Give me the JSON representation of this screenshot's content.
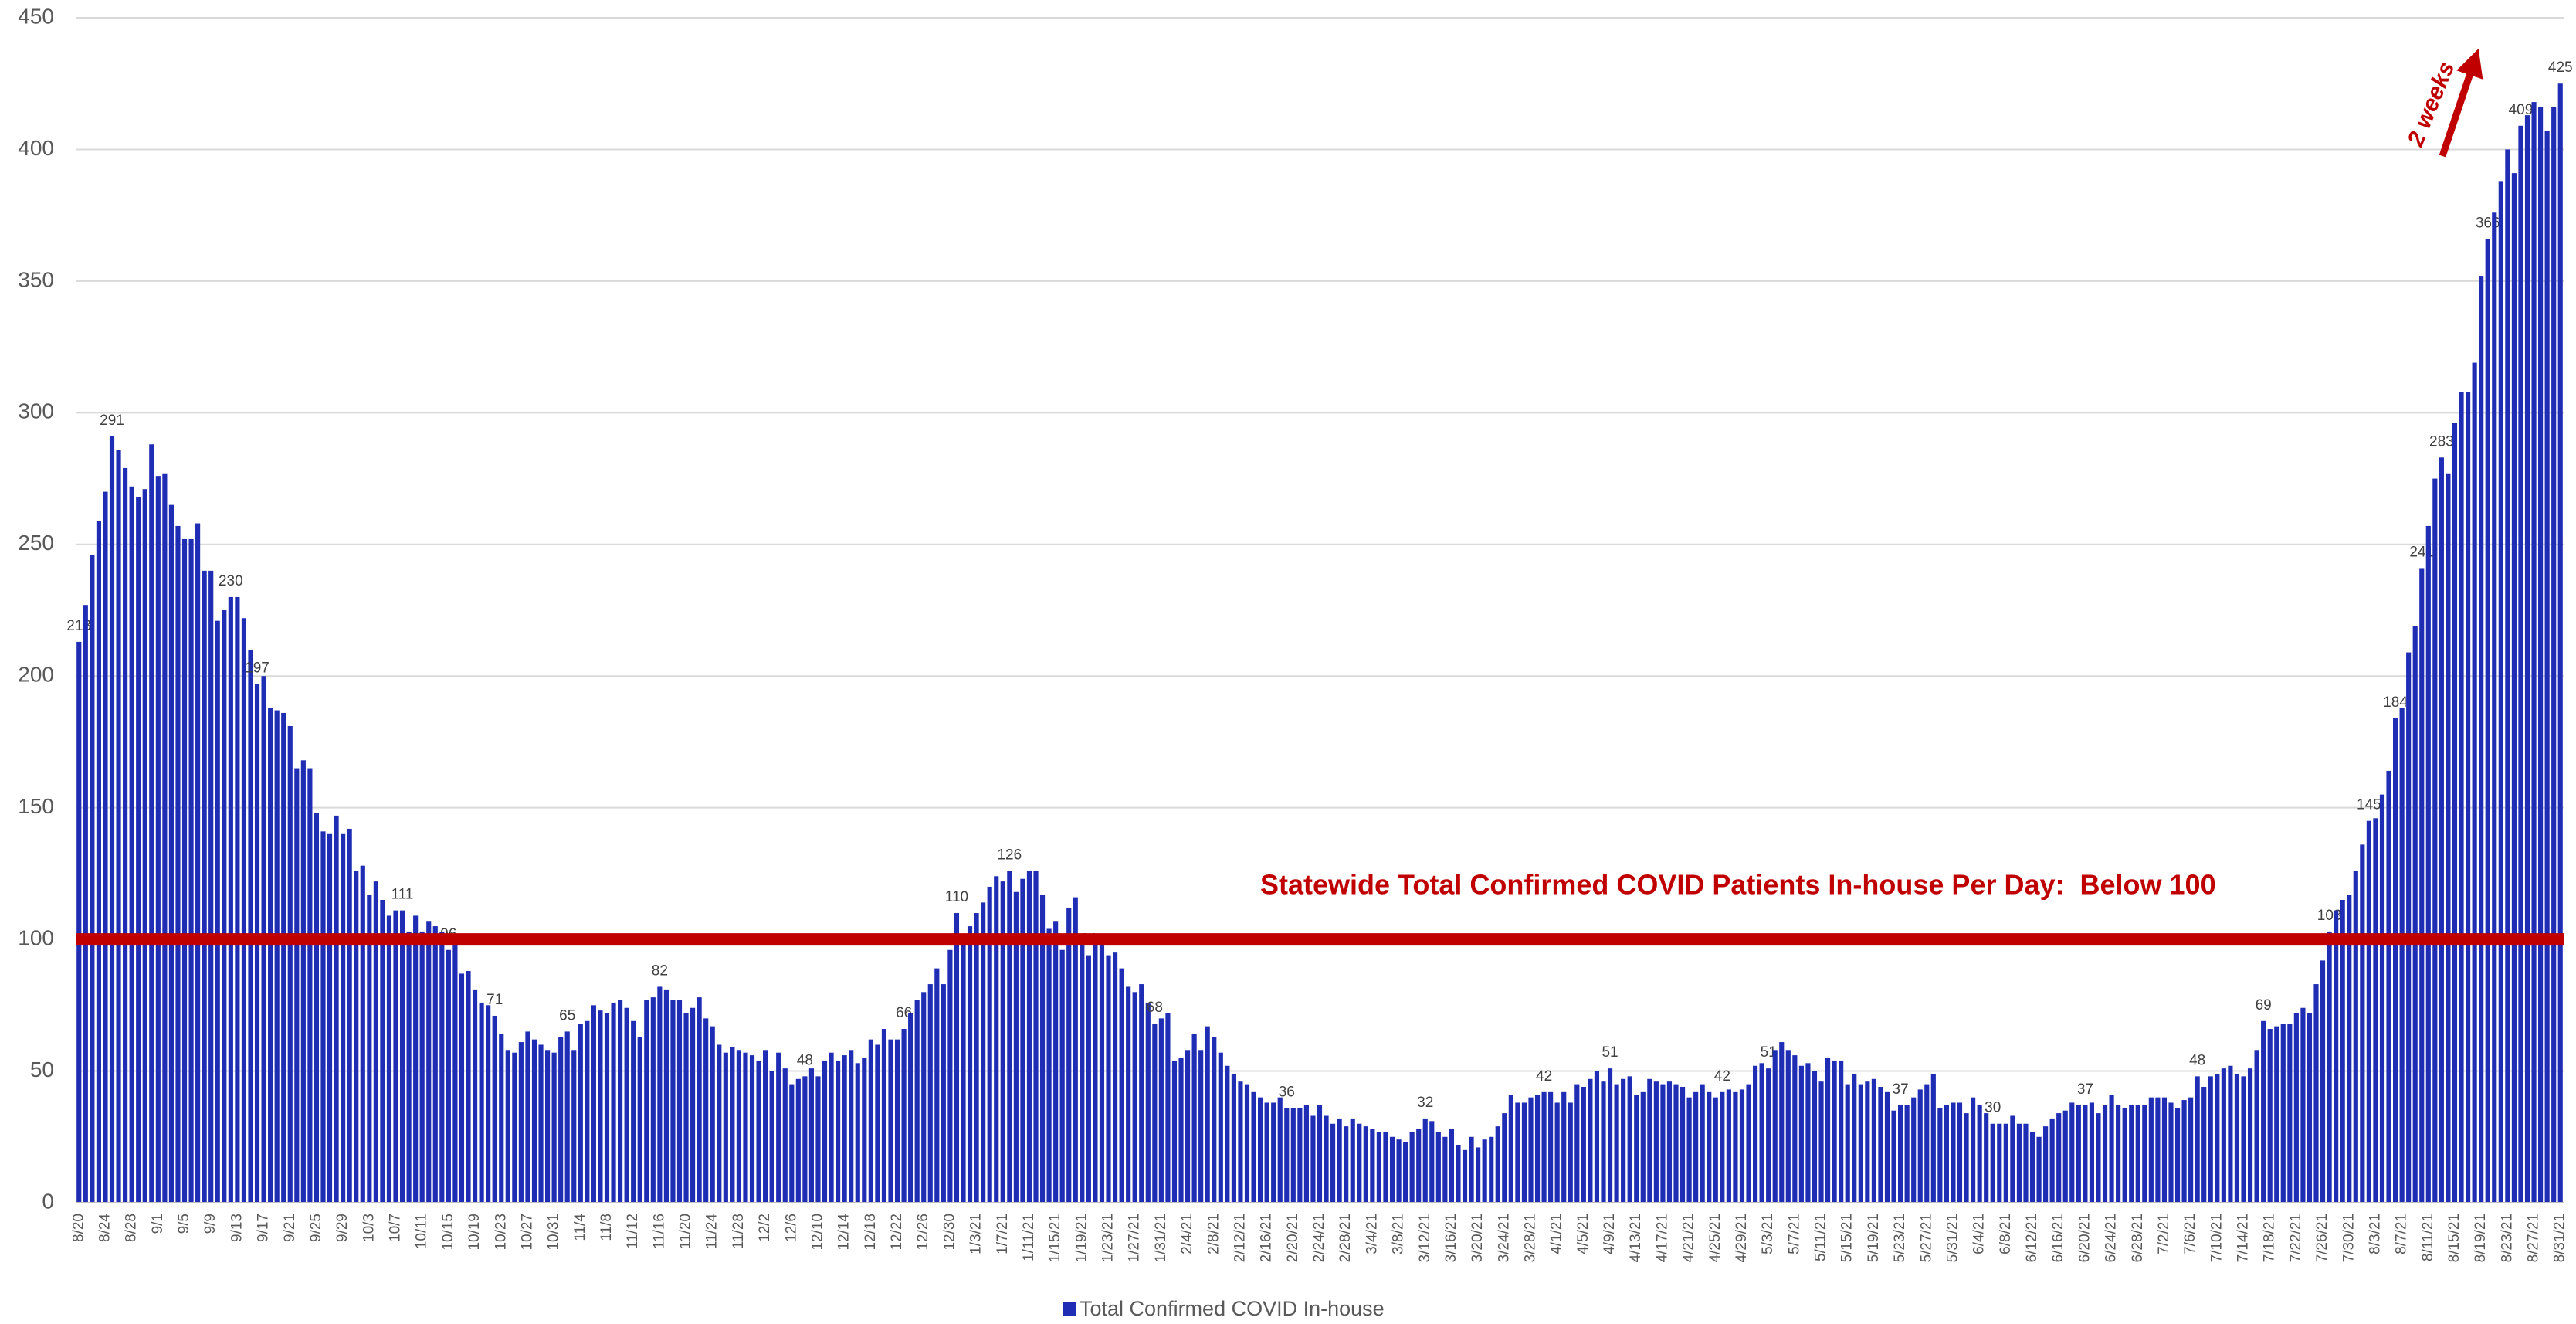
{
  "chart_data": {
    "type": "bar",
    "ylim": [
      0,
      450
    ],
    "yticks": [
      0,
      50,
      100,
      150,
      200,
      250,
      300,
      350,
      400,
      450
    ],
    "grid": true,
    "legend": "bottom",
    "reference_line": {
      "value": 100,
      "label": "Statewide Total Confirmed COVID Patients In-house Per Day:  Below 100",
      "color": "#c00000"
    },
    "annotation": "2 weeks",
    "categories": [
      "8/20",
      null,
      null,
      null,
      "8/24",
      null,
      null,
      null,
      "8/28",
      null,
      null,
      null,
      "9/1",
      null,
      null,
      null,
      "9/5",
      null,
      null,
      null,
      "9/9",
      null,
      null,
      null,
      "9/13",
      null,
      null,
      null,
      "9/17",
      null,
      null,
      null,
      "9/21",
      null,
      null,
      null,
      "9/25",
      null,
      null,
      null,
      "9/29",
      null,
      null,
      null,
      "10/3",
      null,
      null,
      null,
      "10/7",
      null,
      null,
      null,
      "10/11",
      null,
      null,
      null,
      "10/15",
      null,
      null,
      null,
      "10/19",
      null,
      null,
      null,
      "10/23",
      null,
      null,
      null,
      "10/27",
      null,
      null,
      null,
      "10/31",
      null,
      null,
      null,
      "11/4",
      null,
      null,
      null,
      "11/8",
      null,
      null,
      null,
      "11/12",
      null,
      null,
      null,
      "11/16",
      null,
      null,
      null,
      "11/20",
      null,
      null,
      null,
      "11/24",
      null,
      null,
      null,
      "11/28",
      null,
      null,
      null,
      "12/2",
      null,
      null,
      null,
      "12/6",
      null,
      null,
      null,
      "12/10",
      null,
      null,
      null,
      "12/14",
      null,
      null,
      null,
      "12/18",
      null,
      null,
      null,
      "12/22",
      null,
      null,
      null,
      "12/26",
      null,
      null,
      null,
      "12/30",
      null,
      null,
      null,
      "1/3/21",
      null,
      null,
      null,
      "1/7/21",
      null,
      null,
      null,
      "1/11/21",
      null,
      null,
      null,
      "1/15/21",
      null,
      null,
      null,
      "1/19/21",
      null,
      null,
      null,
      "1/23/21",
      null,
      null,
      null,
      "1/27/21",
      null,
      null,
      null,
      "1/31/21",
      null,
      null,
      null,
      "2/4/21",
      null,
      null,
      null,
      "2/8/21",
      null,
      null,
      null,
      "2/12/21",
      null,
      null,
      null,
      "2/16/21",
      null,
      null,
      null,
      "2/20/21",
      null,
      null,
      null,
      "2/24/21",
      null,
      null,
      null,
      "2/28/21",
      null,
      null,
      null,
      "3/4/21",
      null,
      null,
      null,
      "3/8/21",
      null,
      null,
      null,
      "3/12/21",
      null,
      null,
      null,
      "3/16/21",
      null,
      null,
      null,
      "3/20/21",
      null,
      null,
      null,
      "3/24/21",
      null,
      null,
      null,
      "3/28/21",
      null,
      null,
      null,
      "4/1/21",
      null,
      null,
      null,
      "4/5/21",
      null,
      null,
      null,
      "4/9/21",
      null,
      null,
      null,
      "4/13/21",
      null,
      null,
      null,
      "4/17/21",
      null,
      null,
      null,
      "4/21/21",
      null,
      null,
      null,
      "4/25/21",
      null,
      null,
      null,
      "4/29/21",
      null,
      null,
      null,
      "5/3/21",
      null,
      null,
      null,
      "5/7/21",
      null,
      null,
      null,
      "5/11/21",
      null,
      null,
      null,
      "5/15/21",
      null,
      null,
      null,
      "5/19/21",
      null,
      null,
      null,
      "5/23/21",
      null,
      null,
      null,
      "5/27/21",
      null,
      null,
      null,
      "5/31/21",
      null,
      null,
      null,
      "6/4/21",
      null,
      null,
      null,
      "6/8/21",
      null,
      null,
      null,
      "6/12/21",
      null,
      null,
      null,
      "6/16/21",
      null,
      null,
      null,
      "6/20/21",
      null,
      null,
      null,
      "6/24/21",
      null,
      null,
      null,
      "6/28/21",
      null,
      null,
      null,
      "7/2/21",
      null,
      null,
      null,
      "7/6/21",
      null,
      null,
      null,
      "7/10/21",
      null,
      null,
      null,
      "7/14/21",
      null,
      null,
      null,
      "7/18/21",
      null,
      null,
      null,
      "7/22/21",
      null,
      null,
      null,
      "7/26/21",
      null,
      null,
      null,
      "7/30/21",
      null,
      null,
      null,
      "8/3/21",
      null,
      null,
      null,
      "8/7/21",
      null,
      null,
      null,
      "8/11/21",
      null,
      null,
      null,
      "8/15/21",
      null,
      null,
      null,
      "8/19/21",
      null,
      null,
      null,
      "8/23/21",
      null,
      null,
      null,
      "8/27/21",
      null,
      null,
      null,
      "8/31/21"
    ],
    "series": [
      {
        "name": "Total Confirmed COVID In-house",
        "color": "#1f2db5",
        "values": [
          213,
          227,
          246,
          259,
          270,
          291,
          286,
          279,
          272,
          268,
          271,
          288,
          276,
          277,
          265,
          257,
          252,
          252,
          258,
          240,
          240,
          221,
          225,
          230,
          230,
          222,
          210,
          197,
          200,
          188,
          187,
          186,
          181,
          165,
          168,
          165,
          148,
          141,
          140,
          147,
          140,
          142,
          126,
          128,
          117,
          122,
          115,
          109,
          111,
          111,
          103,
          109,
          103,
          107,
          105,
          103,
          96,
          99,
          87,
          88,
          81,
          76,
          75,
          71,
          64,
          58,
          57,
          61,
          65,
          62,
          60,
          58,
          57,
          63,
          65,
          58,
          68,
          69,
          75,
          73,
          72,
          76,
          77,
          74,
          69,
          63,
          77,
          78,
          82,
          81,
          77,
          77,
          72,
          74,
          78,
          70,
          67,
          60,
          57,
          59,
          58,
          57,
          56,
          54,
          58,
          50,
          57,
          51,
          45,
          47,
          48,
          51,
          48,
          54,
          57,
          54,
          56,
          58,
          53,
          55,
          62,
          60,
          66,
          62,
          62,
          66,
          72,
          77,
          80,
          83,
          89,
          83,
          96,
          110,
          100,
          105,
          110,
          114,
          120,
          124,
          122,
          126,
          118,
          123,
          126,
          126,
          117,
          104,
          107,
          96,
          112,
          116,
          98,
          94,
          101,
          100,
          94,
          95,
          89,
          82,
          80,
          83,
          76,
          68,
          70,
          72,
          54,
          55,
          58,
          64,
          58,
          67,
          63,
          57,
          52,
          49,
          46,
          45,
          42,
          40,
          38,
          38,
          40,
          36,
          36,
          36,
          37,
          33,
          37,
          33,
          30,
          32,
          29,
          32,
          30,
          29,
          28,
          27,
          27,
          25,
          24,
          23,
          27,
          28,
          32,
          31,
          27,
          25,
          28,
          22,
          20,
          25,
          21,
          24,
          25,
          29,
          34,
          41,
          38,
          38,
          40,
          41,
          42,
          42,
          38,
          42,
          38,
          45,
          44,
          47,
          50,
          46,
          51,
          45,
          47,
          48,
          41,
          42,
          47,
          46,
          45,
          46,
          45,
          44,
          40,
          42,
          45,
          42,
          40,
          42,
          43,
          42,
          43,
          45,
          52,
          53,
          51,
          58,
          61,
          58,
          56,
          52,
          53,
          50,
          46,
          55,
          54,
          54,
          45,
          49,
          45,
          46,
          47,
          44,
          42,
          35,
          37,
          37,
          40,
          43,
          45,
          49,
          36,
          37,
          38,
          38,
          34,
          40,
          37,
          34,
          30,
          30,
          30,
          33,
          30,
          30,
          27,
          25,
          29,
          32,
          34,
          35,
          38,
          37,
          37,
          38,
          34,
          37,
          41,
          37,
          36,
          37,
          37,
          37,
          40,
          40,
          40,
          38,
          36,
          39,
          40,
          48,
          44,
          48,
          49,
          51,
          52,
          49,
          48,
          51,
          58,
          69,
          66,
          67,
          68,
          68,
          72,
          74,
          72,
          83,
          92,
          103,
          111,
          115,
          117,
          126,
          136,
          145,
          146,
          155,
          164,
          184,
          188,
          209,
          219,
          241,
          257,
          275,
          283,
          277,
          296,
          308,
          308,
          319,
          352,
          366,
          376,
          388,
          400,
          391,
          409,
          413,
          418,
          416,
          407,
          416,
          425
        ],
        "value_labels": [
          213,
          null,
          null,
          null,
          null,
          291,
          null,
          null,
          null,
          null,
          null,
          null,
          null,
          null,
          null,
          null,
          null,
          null,
          null,
          null,
          null,
          null,
          null,
          230,
          null,
          null,
          null,
          197,
          null,
          null,
          null,
          null,
          null,
          null,
          null,
          null,
          null,
          null,
          null,
          null,
          null,
          null,
          null,
          null,
          null,
          null,
          null,
          null,
          null,
          111,
          null,
          null,
          null,
          null,
          null,
          null,
          96,
          null,
          null,
          null,
          null,
          null,
          null,
          71,
          null,
          null,
          null,
          null,
          null,
          null,
          null,
          null,
          null,
          null,
          65,
          null,
          null,
          null,
          null,
          null,
          null,
          null,
          null,
          null,
          null,
          null,
          null,
          null,
          82,
          null,
          null,
          null,
          null,
          null,
          null,
          null,
          null,
          null,
          null,
          null,
          null,
          null,
          null,
          null,
          null,
          null,
          null,
          null,
          null,
          null,
          48,
          null,
          null,
          null,
          null,
          null,
          null,
          null,
          null,
          null,
          null,
          null,
          null,
          null,
          null,
          66,
          null,
          null,
          null,
          null,
          null,
          null,
          null,
          110,
          null,
          null,
          null,
          null,
          null,
          null,
          null,
          126,
          null,
          null,
          null,
          null,
          null,
          null,
          null,
          null,
          null,
          null,
          null,
          94,
          null,
          null,
          null,
          null,
          null,
          null,
          null,
          null,
          null,
          68,
          null,
          null,
          null,
          null,
          null,
          null,
          null,
          null,
          null,
          null,
          null,
          null,
          null,
          null,
          null,
          null,
          null,
          null,
          null,
          36,
          null,
          null,
          null,
          null,
          null,
          null,
          null,
          null,
          null,
          null,
          null,
          null,
          null,
          null,
          null,
          null,
          null,
          null,
          null,
          null,
          32,
          null,
          null,
          null,
          null,
          null,
          null,
          null,
          null,
          null,
          null,
          null,
          null,
          null,
          null,
          null,
          null,
          null,
          42,
          null,
          null,
          null,
          null,
          null,
          null,
          null,
          null,
          null,
          51,
          null,
          null,
          null,
          null,
          null,
          null,
          null,
          null,
          null,
          null,
          null,
          null,
          null,
          null,
          null,
          null,
          42,
          null,
          null,
          null,
          null,
          null,
          null,
          51,
          null,
          null,
          null,
          null,
          null,
          null,
          null,
          null,
          null,
          null,
          null,
          null,
          null,
          null,
          null,
          null,
          null,
          null,
          null,
          37,
          null,
          null,
          null,
          null,
          null,
          null,
          null,
          null,
          null,
          null,
          null,
          null,
          null,
          30,
          null,
          null,
          null,
          null,
          null,
          null,
          null,
          null,
          null,
          null,
          null,
          null,
          null,
          37,
          null,
          null,
          null,
          null,
          null,
          null,
          null,
          null,
          null,
          null,
          null,
          null,
          null,
          null,
          null,
          null,
          48,
          null,
          null,
          null,
          null,
          null,
          null,
          null,
          null,
          null,
          69,
          null,
          null,
          null,
          null,
          null,
          null,
          null,
          null,
          null,
          103,
          null,
          null,
          null,
          null,
          null,
          145,
          null,
          null,
          null,
          184,
          null,
          null,
          null,
          241,
          null,
          null,
          283,
          null,
          null,
          null,
          null,
          null,
          null,
          366,
          null,
          null,
          null,
          null,
          409,
          null,
          null,
          null,
          null,
          null,
          425
        ]
      }
    ]
  }
}
